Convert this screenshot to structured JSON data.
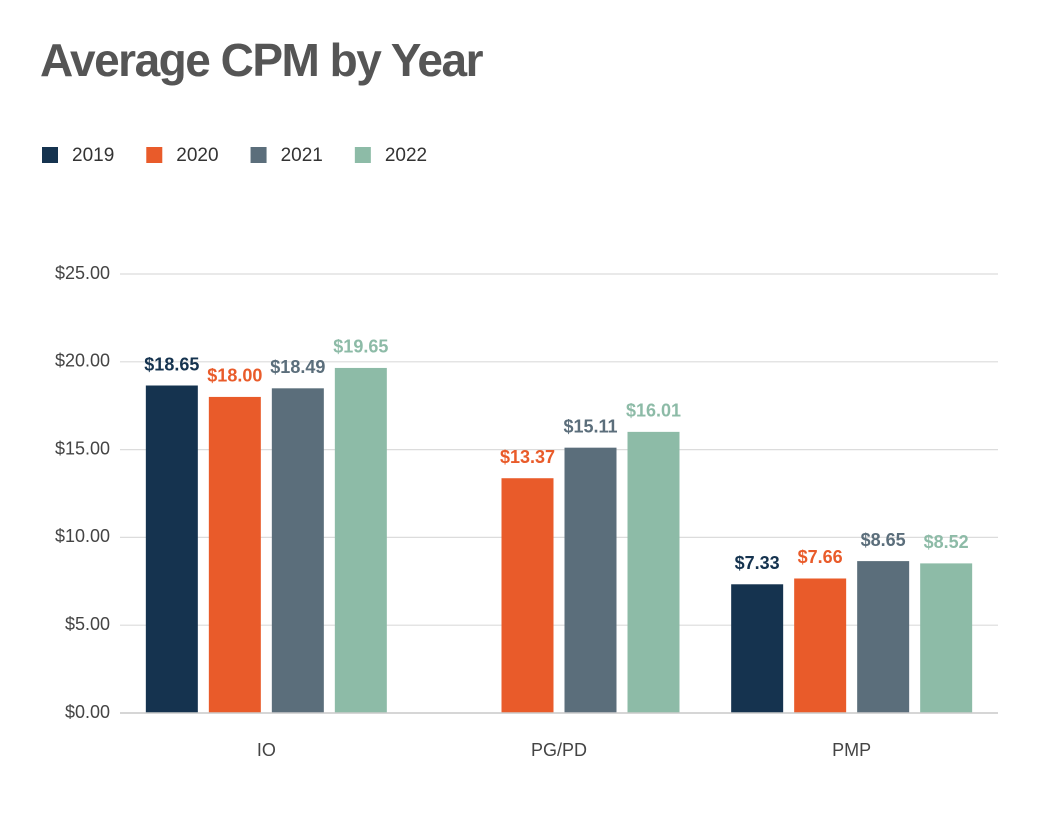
{
  "chart_data": {
    "type": "bar",
    "title": "Average CPM by Year",
    "categories": [
      "IO",
      "PG/PD",
      "PMP"
    ],
    "series": [
      {
        "name": "2019",
        "color": "#15334f",
        "values": [
          18.65,
          null,
          7.33
        ],
        "value_labels": [
          "$18.65",
          null,
          "$7.33"
        ]
      },
      {
        "name": "2020",
        "color": "#e95b2a",
        "values": [
          18.0,
          13.37,
          7.66
        ],
        "value_labels": [
          "$18.00",
          "$13.37",
          "$7.66"
        ]
      },
      {
        "name": "2021",
        "color": "#5b6e7b",
        "values": [
          18.49,
          15.11,
          8.65
        ],
        "value_labels": [
          "$18.49",
          "$15.11",
          "$8.65"
        ]
      },
      {
        "name": "2022",
        "color": "#8dbba7",
        "values": [
          19.65,
          16.01,
          8.52
        ],
        "value_labels": [
          "$19.65",
          "$16.01",
          "$8.52"
        ]
      }
    ],
    "ylim": [
      0,
      25
    ],
    "yticks": [
      {
        "value": 0,
        "label": "$0.00"
      },
      {
        "value": 5,
        "label": "$5.00"
      },
      {
        "value": 10,
        "label": "$10.00"
      },
      {
        "value": 15,
        "label": "$15.00"
      },
      {
        "value": 20,
        "label": "$20.00"
      },
      {
        "value": 25,
        "label": "$25.00"
      }
    ],
    "grid": true
  }
}
